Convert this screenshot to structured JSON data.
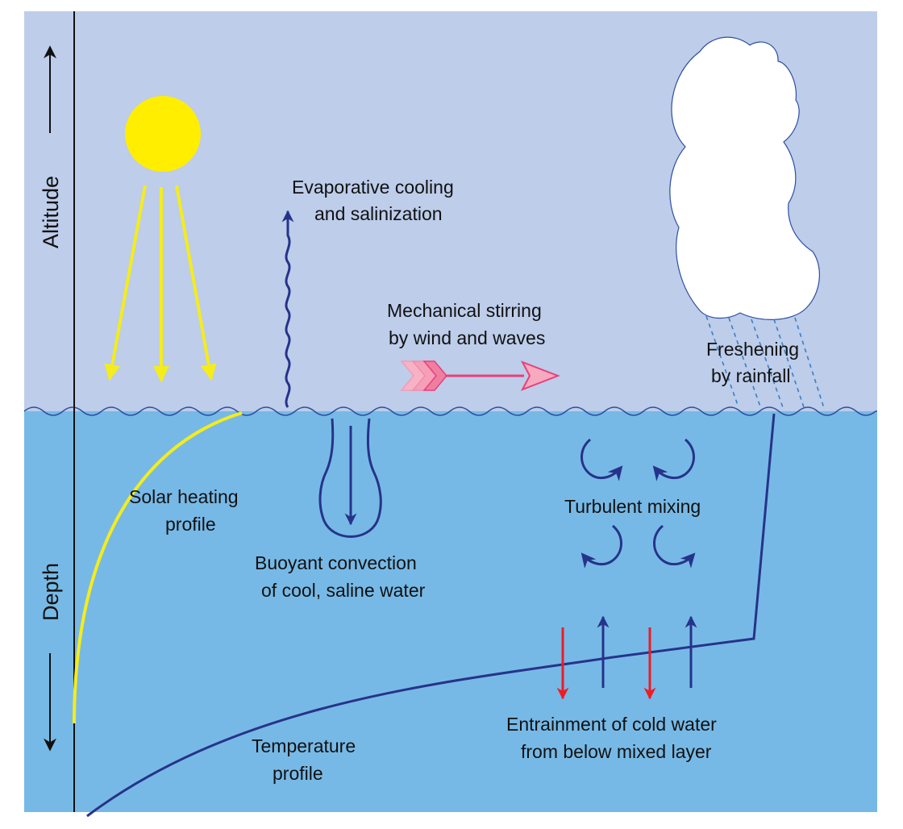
{
  "axis": {
    "altitude": "Altitude",
    "depth": "Depth"
  },
  "labels": {
    "evaporative_1": "Evaporative cooling",
    "evaporative_2": "and salinization",
    "mechanical_1": "Mechanical stirring",
    "mechanical_2": "by wind and waves",
    "freshening_1": "Freshening",
    "freshening_2": "by rainfall",
    "solar_1": "Solar heating",
    "solar_2": "profile",
    "buoyant_1": "Buoyant convection",
    "buoyant_2": "of cool, saline water",
    "turbulent": "Turbulent mixing",
    "entrainment_1": "Entrainment of cold water",
    "entrainment_2": "from below mixed layer",
    "temperature_1": "Temperature",
    "temperature_2": "profile"
  },
  "colors": {
    "sky": "#bdcdea",
    "ocean": "#77b9e6",
    "sun": "#ffee00",
    "solar_rays": "#f5ec1c",
    "process_arrow": "#26338a",
    "wind_arrow": "#e8407a",
    "entrainment_down": "#ee1c25",
    "cloud": "#ffffff",
    "rain": "#3a7fc4"
  },
  "icons": {
    "sun": "sun-icon",
    "cloud": "cloud-icon",
    "rain": "rain-lines",
    "wind": "feathered-arrow-icon",
    "eddies": "circular-arrow-icons"
  }
}
